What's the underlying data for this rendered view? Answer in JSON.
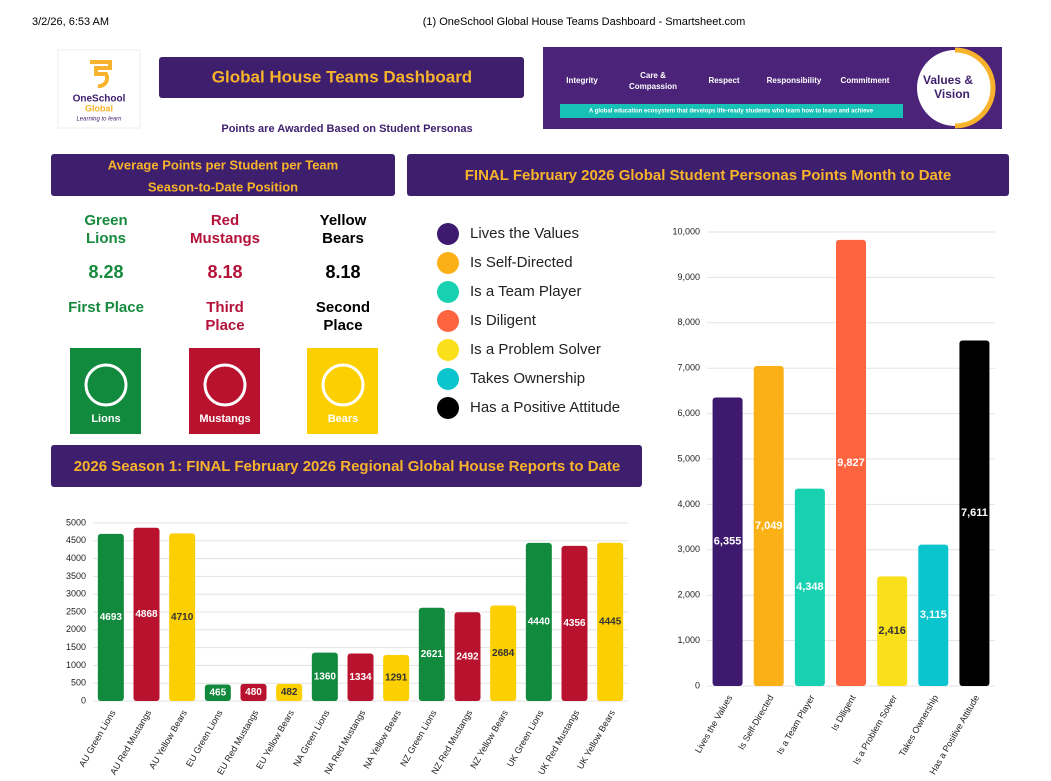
{
  "header": {
    "date": "3/2/26, 6:53 AM",
    "page_title": "(1) OneSchool Global House Teams Dashboard - Smartsheet.com"
  },
  "logo": {
    "line1": "OneSchool",
    "line2": "Global",
    "tagline": "Learning to learn"
  },
  "banner": {
    "title": "Global House Teams Dashboard",
    "subtitle": "Points are Awarded Based on Student Personas"
  },
  "values_banner": {
    "items": [
      "Integrity",
      "Care &",
      "Compassion",
      "Respect",
      "Responsibility",
      "Commitment"
    ],
    "tagline": "A global education ecosystem that develops life-ready students who learn how to learn and achieve",
    "badge": [
      "Values &",
      "Vision"
    ]
  },
  "standings": {
    "title": [
      "Average Points per Student per Team",
      "Season-to-Date Position"
    ],
    "teams": [
      {
        "name": [
          "Green",
          "Lions"
        ],
        "points": 8.28,
        "place": [
          "First Place"
        ],
        "badge": "Lions",
        "color": "#178a3e",
        "badge_color": "#128a3e"
      },
      {
        "name": [
          "Red",
          "Mustangs"
        ],
        "points": 8.18,
        "place": [
          "Third",
          "Place"
        ],
        "badge": "Mustangs",
        "color": "#b5123a",
        "badge_color": "#b8122f"
      },
      {
        "name": [
          "Yellow",
          "Bears"
        ],
        "points": 8.18,
        "place": [
          "Second",
          "Place"
        ],
        "badge": "Bears",
        "color": "#000000",
        "badge_color": "#fccf00"
      }
    ]
  },
  "chart_data": [
    {
      "type": "bar",
      "title": "FINAL February 2026 Global Student Personas Points Month to Date",
      "categories": [
        "Lives the Values",
        "Is Self-Directed",
        "Is a Team Player",
        "Is Diligent",
        "Is a Problem Solver",
        "Takes Ownership",
        "Has a Positive Attitude"
      ],
      "values": [
        6355,
        7049,
        4348,
        9827,
        2416,
        3115,
        7611
      ],
      "value_labels": [
        "6,355",
        "7,049",
        "4,348",
        "9,827",
        "2,416",
        "3,115",
        "7,611"
      ],
      "colors": [
        "#3d1a6e",
        "#fbb116",
        "#17d1b0",
        "#ff6440",
        "#f9e01b",
        "#0bc5ce",
        "#000000"
      ],
      "ylim": [
        0,
        10000
      ],
      "yticks": [
        0,
        {
          "value": 1000,
          "label": "1,000"
        },
        {
          "value": 2000,
          "label": "2,000"
        },
        {
          "value": 3000,
          "label": "3,000"
        },
        {
          "value": 4000,
          "label": "4,000"
        },
        {
          "value": 5000,
          "label": "5,000"
        },
        {
          "value": 6000,
          "label": "6,000"
        },
        {
          "value": 7000,
          "label": "7,000"
        },
        {
          "value": 8000,
          "label": "8,000"
        },
        {
          "value": 9000,
          "label": "9,000"
        },
        {
          "value": 10000,
          "label": "10,000"
        }
      ],
      "grid": true,
      "legend": "left"
    },
    {
      "type": "bar",
      "title": "2026 Season 1:  FINAL February 2026 Regional Global House Reports to Date",
      "categories": [
        "AU Green Lions",
        "AU Red Mustangs",
        "AU Yellow Bears",
        "EU Green Lions",
        "EU Red Mustangs",
        "EU Yellow Bears",
        "NA Green Lions",
        "NA Red Mustangs",
        "NA Yellow Bears",
        "NZ Green Lions",
        "NZ Red Mustangs",
        "NZ Yellow Bears",
        "UK Green Lions",
        "UK Red Mustangs",
        "UK Yellow Bears"
      ],
      "values": [
        4693,
        4868,
        4710,
        465,
        480,
        482,
        1360,
        1334,
        1291,
        2621,
        2492,
        2684,
        4440,
        4356,
        4445
      ],
      "colors": [
        "#128a3e",
        "#b8122f",
        "#fccf00",
        "#128a3e",
        "#b8122f",
        "#fccf00",
        "#128a3e",
        "#b8122f",
        "#fccf00",
        "#128a3e",
        "#b8122f",
        "#fccf00",
        "#128a3e",
        "#b8122f",
        "#fccf00"
      ],
      "ylim": [
        0,
        5000
      ],
      "yticks": [
        0,
        500,
        1000,
        1500,
        2000,
        2500,
        3000,
        3500,
        4000,
        4500,
        5000
      ],
      "grid": true
    }
  ]
}
